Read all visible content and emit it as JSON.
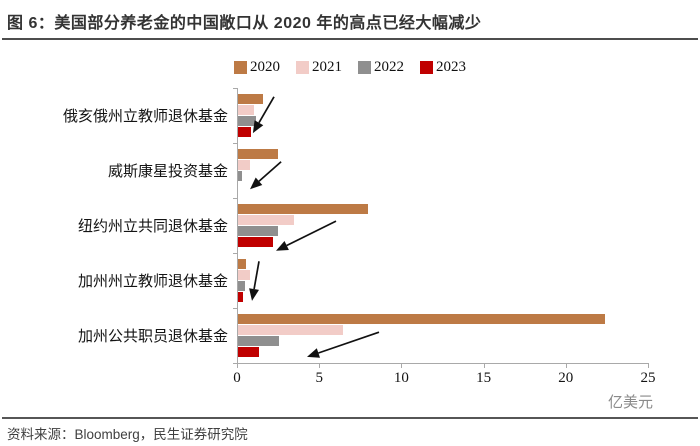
{
  "header": {
    "figure_title": "图 6：美国部分养老金的中国敞口从 2020 年的高点已经大幅减少"
  },
  "footer": {
    "source": "资料来源：Bloomberg，民生证券研究院"
  },
  "colors": {
    "y2020": "#bd7a45",
    "y2021": "#f2ccc7",
    "y2022": "#8f8f8f",
    "y2023": "#c00000",
    "axis": "#a9a9a9",
    "arrow": "#111111"
  },
  "chart_data": {
    "type": "bar",
    "orientation": "horizontal",
    "title": "",
    "unit_label": "亿美元",
    "xlim": [
      0,
      25
    ],
    "x_ticks": [
      0,
      5,
      10,
      15,
      20,
      25
    ],
    "grid": false,
    "legend_position": "top",
    "categories": [
      "俄亥俄州立教师退休基金",
      "威斯康星投资基金",
      "纽约州立共同退休基金",
      "加州州立教师退休基金",
      "加州公共职员退休基金"
    ],
    "series": [
      {
        "name": "2020",
        "color": "#bd7a45",
        "values": [
          1.5,
          2.4,
          7.9,
          0.5,
          22.3
        ]
      },
      {
        "name": "2021",
        "color": "#f2ccc7",
        "values": [
          1.0,
          0.7,
          3.4,
          0.7,
          6.4
        ]
      },
      {
        "name": "2022",
        "color": "#8f8f8f",
        "values": [
          1.1,
          0.25,
          2.4,
          0.45,
          2.5
        ]
      },
      {
        "name": "2023",
        "color": "#c00000",
        "values": [
          0.8,
          0,
          2.1,
          0.3,
          1.3
        ]
      }
    ],
    "annotations": [
      {
        "type": "arrow",
        "from": [
          2.25,
          0.16
        ],
        "to": [
          0.97,
          0.82
        ]
      },
      {
        "type": "arrow",
        "from": [
          2.68,
          1.34
        ],
        "to": [
          0.79,
          1.84
        ]
      },
      {
        "type": "arrow",
        "from": [
          6.02,
          2.42
        ],
        "to": [
          2.37,
          2.96
        ]
      },
      {
        "type": "arrow",
        "from": [
          1.34,
          3.15
        ],
        "to": [
          0.91,
          3.87
        ]
      },
      {
        "type": "arrow",
        "from": [
          8.64,
          4.44
        ],
        "to": [
          4.26,
          4.89
        ]
      }
    ]
  }
}
